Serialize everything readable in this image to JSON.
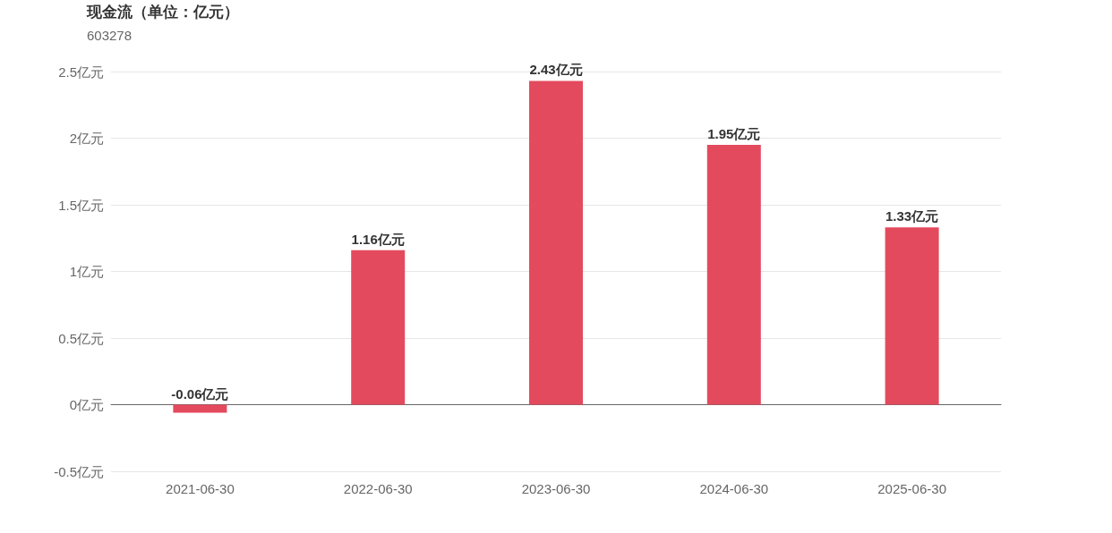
{
  "chart_data": {
    "type": "bar",
    "title": "现金流（单位：亿元）",
    "subtitle": "603278",
    "categories": [
      "2021-06-30",
      "2022-06-30",
      "2023-06-30",
      "2024-06-30",
      "2025-06-30"
    ],
    "values": [
      -0.06,
      1.16,
      2.43,
      1.95,
      1.33
    ],
    "value_labels": [
      "-0.06亿元",
      "1.16亿元",
      "2.43亿元",
      "1.95亿元",
      "1.33亿元"
    ],
    "color": "#e44a5d",
    "ylim": [
      -0.5,
      2.5
    ],
    "yticks": [
      {
        "value": -0.5,
        "label": "-0.5亿元"
      },
      {
        "value": 0,
        "label": "0亿元"
      },
      {
        "value": 0.5,
        "label": "0.5亿元"
      },
      {
        "value": 1,
        "label": "1亿元"
      },
      {
        "value": 1.5,
        "label": "1.5亿元"
      },
      {
        "value": 2,
        "label": "2亿元"
      },
      {
        "value": 2.5,
        "label": "2.5亿元"
      }
    ],
    "grid": "y"
  }
}
